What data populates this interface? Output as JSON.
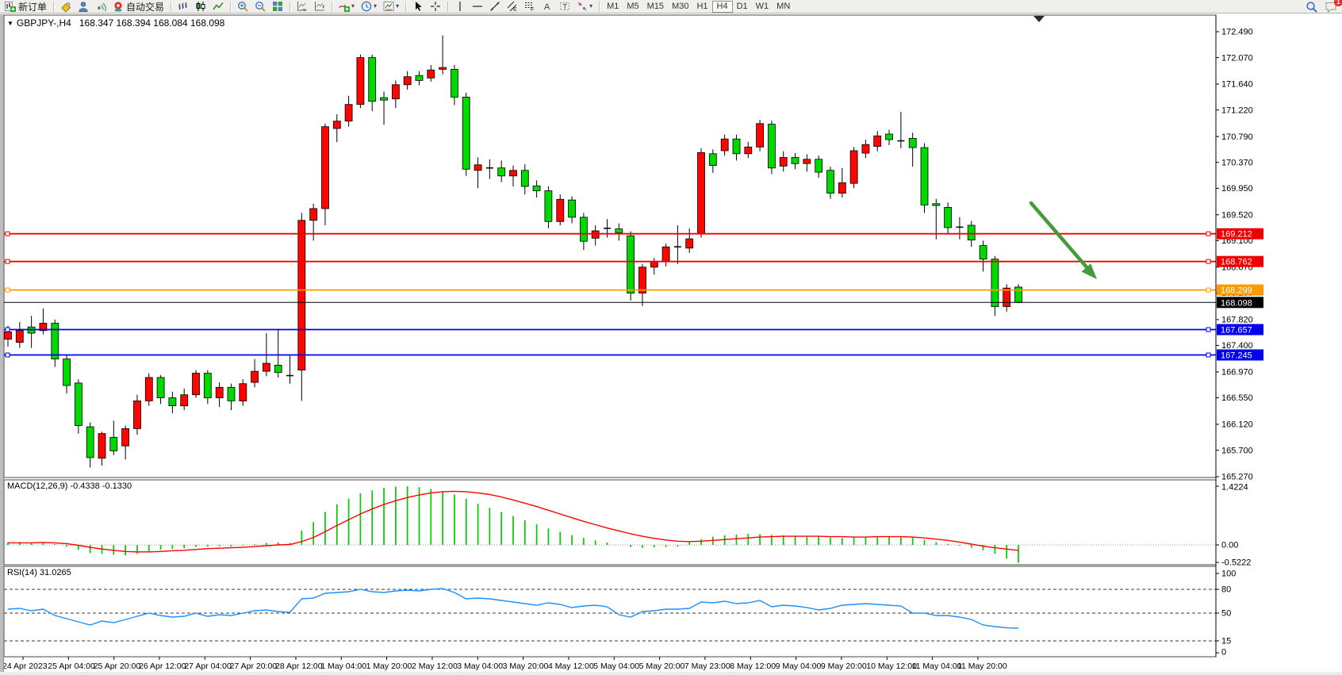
{
  "toolbar": {
    "new_order_label": "新订单",
    "autotrading_label": "自动交易",
    "notification_count": "1",
    "timeframes": [
      "M1",
      "M5",
      "M15",
      "M30",
      "H1",
      "H4",
      "D1",
      "W1",
      "MN"
    ],
    "active_timeframe": "H4",
    "groups": [
      {
        "name": "order",
        "items": [
          {
            "icon": "new-order-icon",
            "name": "new-order-button",
            "label_key": "new_order_label"
          }
        ]
      },
      {
        "name": "quick",
        "items": [
          {
            "icon": "styles-bucket-icon",
            "name": "styles-button"
          },
          {
            "icon": "profile-icon",
            "name": "profile-button"
          },
          {
            "icon": "signals-icon",
            "name": "signals-button"
          },
          {
            "icon": "autotrading-icon",
            "name": "autotrading-button",
            "label_key": "autotrading_label"
          }
        ]
      },
      {
        "name": "chart-type",
        "items": [
          {
            "icon": "bar-chart-icon",
            "name": "bar-chart-button"
          },
          {
            "icon": "candlestick-icon",
            "name": "candlestick-button"
          },
          {
            "icon": "line-chart-icon",
            "name": "line-chart-button"
          }
        ]
      },
      {
        "name": "zoom",
        "items": [
          {
            "icon": "zoom-in-icon",
            "name": "zoom-in-button"
          },
          {
            "icon": "zoom-out-icon",
            "name": "zoom-out-button"
          },
          {
            "icon": "tile-windows-icon",
            "name": "tile-windows-button"
          }
        ]
      },
      {
        "name": "scroll",
        "items": [
          {
            "icon": "auto-scroll-icon",
            "name": "auto-scroll-button"
          },
          {
            "icon": "chart-shift-icon",
            "name": "chart-shift-button"
          }
        ]
      },
      {
        "name": "insert",
        "items": [
          {
            "icon": "indicators-icon",
            "name": "indicators-button",
            "dropdown": true
          },
          {
            "icon": "periods-icon",
            "name": "periods-button",
            "dropdown": true
          },
          {
            "icon": "templates-icon",
            "name": "templates-button",
            "dropdown": true
          }
        ]
      },
      {
        "name": "pointer",
        "items": [
          {
            "icon": "cursor-icon",
            "name": "cursor-button"
          },
          {
            "icon": "crosshair-icon",
            "name": "crosshair-button"
          }
        ]
      },
      {
        "name": "objects",
        "items": [
          {
            "icon": "vertical-line-icon",
            "name": "vertical-line-button"
          },
          {
            "icon": "horizontal-line-icon",
            "name": "horizontal-line-button"
          },
          {
            "icon": "trendline-icon",
            "name": "trendline-button"
          },
          {
            "icon": "equidistant-channel-icon",
            "name": "equidistant-channel-button"
          },
          {
            "icon": "fibonacci-icon",
            "name": "fibonacci-button"
          },
          {
            "icon": "text-icon",
            "name": "text-button"
          },
          {
            "icon": "label-icon",
            "name": "label-button"
          },
          {
            "icon": "arrows-icon",
            "name": "arrows-button",
            "dropdown": true
          }
        ]
      }
    ],
    "right_items": [
      {
        "icon": "search-icon",
        "name": "search-button"
      },
      {
        "icon": "chat-icon",
        "name": "notifications-button",
        "badged": true
      }
    ]
  },
  "chart_header": {
    "collapse_glyph": "▼",
    "symbol_period": "GBPJPY-,H4",
    "ohlc": "168.347 168.394 168.084 168.098"
  },
  "price_axis": {
    "ticks": [
      "172.490",
      "172.070",
      "171.640",
      "171.220",
      "170.790",
      "170.370",
      "169.950",
      "169.520",
      "169.100",
      "168.670",
      "168.250",
      "167.820",
      "167.400",
      "166.970",
      "166.550",
      "166.120",
      "165.700",
      "165.270"
    ]
  },
  "lines": {
    "hlines": [
      {
        "price": 169.212,
        "label": "169.212",
        "color": "#ee0000"
      },
      {
        "price": 168.762,
        "label": "168.762",
        "color": "#ee0000"
      },
      {
        "price": 168.299,
        "label": "168.299",
        "color": "#ff9900"
      },
      {
        "price": 167.657,
        "label": "167.657",
        "color": "#0000ee"
      },
      {
        "price": 167.245,
        "label": "167.245",
        "color": "#0000ee"
      }
    ],
    "bid": {
      "price": 168.098,
      "label": "168.098",
      "color": "#000000"
    }
  },
  "macd_pane": {
    "label": "MACD(12,26,9) -0.4338 -0.1330",
    "ticks": [
      {
        "v": 1.4224,
        "label": "1.4224"
      },
      {
        "v": 0.0,
        "label": "0.00"
      },
      {
        "v": -0.5222,
        "label": "-0.5222"
      }
    ]
  },
  "rsi_pane": {
    "label": "RSI(14) 31.0265",
    "ticks": [
      {
        "v": 100,
        "label": "100"
      },
      {
        "v": 80,
        "label": "80"
      },
      {
        "v": 50,
        "label": "50"
      },
      {
        "v": 15,
        "label": "15"
      },
      {
        "v": 0,
        "label": "0"
      }
    ],
    "levels": [
      80,
      50,
      15
    ]
  },
  "annotation_arrow": {
    "color": "#459A3B"
  },
  "chart_data": {
    "type": "candlestick",
    "symbol": "GBPJPY-",
    "period": "H4",
    "title": "GBPJPY-,H4",
    "bull_color": "#ff0400",
    "bear_color": "#00d900",
    "macd_hist_color": "#00cc00",
    "macd_signal_color": "#ff0000",
    "rsi_color": "#1E90FF",
    "ylim": [
      165.257,
      172.747
    ],
    "x_labels": [
      "24 Apr 2023",
      "25 Apr 04:00",
      "25 Apr 20:00",
      "26 Apr 12:00",
      "27 Apr 04:00",
      "27 Apr 20:00",
      "28 Apr 12:00",
      "1 May 04:00",
      "1 May 20:00",
      "2 May 12:00",
      "3 May 04:00",
      "3 May 20:00",
      "4 May 12:00",
      "5 May 04:00",
      "5 May 20:00",
      "7 May 23:00",
      "8 May 12:00",
      "9 May 04:00",
      "9 May 20:00",
      "10 May 12:00",
      "11 May 04:00",
      "11 May 20:00"
    ],
    "candles": [
      [
        167.5,
        167.72,
        167.38,
        167.62
      ],
      [
        167.45,
        167.78,
        167.36,
        167.64
      ],
      [
        167.7,
        167.88,
        167.36,
        167.6
      ],
      [
        167.64,
        168.0,
        167.58,
        167.76
      ],
      [
        167.76,
        167.82,
        167.05,
        167.18
      ],
      [
        167.18,
        167.25,
        166.62,
        166.75
      ],
      [
        166.79,
        166.85,
        165.97,
        166.1
      ],
      [
        166.08,
        166.15,
        165.42,
        165.58
      ],
      [
        165.57,
        166.0,
        165.45,
        165.97
      ],
      [
        165.91,
        166.18,
        165.62,
        165.69
      ],
      [
        165.77,
        166.1,
        165.55,
        166.05
      ],
      [
        166.05,
        166.6,
        165.95,
        166.5
      ],
      [
        166.5,
        166.95,
        166.42,
        166.88
      ],
      [
        166.88,
        166.92,
        166.45,
        166.55
      ],
      [
        166.55,
        166.65,
        166.3,
        166.42
      ],
      [
        166.42,
        166.7,
        166.35,
        166.6
      ],
      [
        166.6,
        167.0,
        166.55,
        166.95
      ],
      [
        166.95,
        167.0,
        166.45,
        166.55
      ],
      [
        166.55,
        166.8,
        166.4,
        166.72
      ],
      [
        166.72,
        166.78,
        166.35,
        166.5
      ],
      [
        166.5,
        166.85,
        166.42,
        166.78
      ],
      [
        166.8,
        167.18,
        166.72,
        166.98
      ],
      [
        166.98,
        167.6,
        166.9,
        167.11
      ],
      [
        167.08,
        167.67,
        166.88,
        166.96
      ],
      [
        166.93,
        167.25,
        166.78,
        166.91
      ],
      [
        167.0,
        169.55,
        166.5,
        169.43
      ],
      [
        169.43,
        169.7,
        169.1,
        169.62
      ],
      [
        169.62,
        171.0,
        169.35,
        170.95
      ],
      [
        170.92,
        171.15,
        170.7,
        171.04
      ],
      [
        171.04,
        171.45,
        170.95,
        171.31
      ],
      [
        171.31,
        172.12,
        171.25,
        172.07
      ],
      [
        172.07,
        172.12,
        171.2,
        171.36
      ],
      [
        171.42,
        171.52,
        170.98,
        171.38
      ],
      [
        171.4,
        171.7,
        171.25,
        171.63
      ],
      [
        171.63,
        171.85,
        171.55,
        171.76
      ],
      [
        171.78,
        171.85,
        171.62,
        171.7
      ],
      [
        171.74,
        171.95,
        171.68,
        171.87
      ],
      [
        171.88,
        172.43,
        171.8,
        171.91
      ],
      [
        171.88,
        171.95,
        171.3,
        171.43
      ],
      [
        171.43,
        171.5,
        170.15,
        170.26
      ],
      [
        170.24,
        170.45,
        169.95,
        170.33
      ],
      [
        170.3,
        170.42,
        170.1,
        170.28
      ],
      [
        170.28,
        170.4,
        170.05,
        170.15
      ],
      [
        170.15,
        170.32,
        169.98,
        170.24
      ],
      [
        170.24,
        170.34,
        169.85,
        169.98
      ],
      [
        169.99,
        170.08,
        169.8,
        169.91
      ],
      [
        169.91,
        169.98,
        169.3,
        169.41
      ],
      [
        169.41,
        169.85,
        169.35,
        169.77
      ],
      [
        169.76,
        169.82,
        169.38,
        169.48
      ],
      [
        169.48,
        169.55,
        168.95,
        169.09
      ],
      [
        169.14,
        169.35,
        169.02,
        169.26
      ],
      [
        169.29,
        169.45,
        169.15,
        169.3
      ],
      [
        169.29,
        169.38,
        169.1,
        169.23
      ],
      [
        169.18,
        169.25,
        168.13,
        168.25
      ],
      [
        168.25,
        168.72,
        168.04,
        168.67
      ],
      [
        168.67,
        168.82,
        168.55,
        168.76
      ],
      [
        168.76,
        169.05,
        168.68,
        169.0
      ],
      [
        169.0,
        169.35,
        168.72,
        169.0
      ],
      [
        168.98,
        169.3,
        168.9,
        169.13
      ],
      [
        169.21,
        170.6,
        169.15,
        170.53
      ],
      [
        170.51,
        170.58,
        170.2,
        170.32
      ],
      [
        170.56,
        170.82,
        170.48,
        170.75
      ],
      [
        170.75,
        170.82,
        170.4,
        170.51
      ],
      [
        170.51,
        170.7,
        170.44,
        170.62
      ],
      [
        170.62,
        171.06,
        170.55,
        171.0
      ],
      [
        170.99,
        171.05,
        170.18,
        170.28
      ],
      [
        170.31,
        170.55,
        170.22,
        170.45
      ],
      [
        170.45,
        170.52,
        170.26,
        170.35
      ],
      [
        170.35,
        170.5,
        170.22,
        170.42
      ],
      [
        170.42,
        170.48,
        170.12,
        170.21
      ],
      [
        170.24,
        170.3,
        169.78,
        169.87
      ],
      [
        169.87,
        170.28,
        169.8,
        170.04
      ],
      [
        170.03,
        170.62,
        169.95,
        170.56
      ],
      [
        170.52,
        170.74,
        170.44,
        170.66
      ],
      [
        170.63,
        170.88,
        170.55,
        170.8
      ],
      [
        170.83,
        170.9,
        170.65,
        170.74
      ],
      [
        170.72,
        171.19,
        170.6,
        170.72
      ],
      [
        170.76,
        170.85,
        170.3,
        170.61
      ],
      [
        170.61,
        170.68,
        169.55,
        169.68
      ],
      [
        169.7,
        169.78,
        169.12,
        169.67
      ],
      [
        169.64,
        169.72,
        169.2,
        169.31
      ],
      [
        169.32,
        169.48,
        169.12,
        169.32
      ],
      [
        169.35,
        169.42,
        169.0,
        169.11
      ],
      [
        169.02,
        169.1,
        168.6,
        168.8
      ],
      [
        168.8,
        168.85,
        167.88,
        168.03
      ],
      [
        168.03,
        168.39,
        167.95,
        168.33
      ],
      [
        168.347,
        168.394,
        168.084,
        168.098
      ]
    ],
    "macd_hist": [
      0.06,
      0.07,
      0.06,
      0.06,
      0.02,
      -0.04,
      -0.12,
      -0.2,
      -0.22,
      -0.24,
      -0.25,
      -0.22,
      -0.16,
      -0.12,
      -0.1,
      -0.08,
      -0.05,
      -0.04,
      -0.03,
      -0.04,
      -0.02,
      0.02,
      0.05,
      0.06,
      0.05,
      0.35,
      0.55,
      0.8,
      0.98,
      1.12,
      1.25,
      1.32,
      1.38,
      1.41,
      1.42,
      1.4,
      1.36,
      1.3,
      1.22,
      1.12,
      1.0,
      0.9,
      0.8,
      0.7,
      0.6,
      0.5,
      0.4,
      0.32,
      0.24,
      0.17,
      0.11,
      0.06,
      0.0,
      -0.05,
      -0.07,
      -0.06,
      -0.05,
      -0.04,
      0.08,
      0.14,
      0.2,
      0.23,
      0.25,
      0.27,
      0.26,
      0.24,
      0.23,
      0.22,
      0.21,
      0.2,
      0.18,
      0.17,
      0.19,
      0.2,
      0.21,
      0.21,
      0.2,
      0.18,
      0.12,
      0.07,
      0.02,
      -0.02,
      -0.07,
      -0.13,
      -0.22,
      -0.33,
      -0.4338
    ],
    "macd_signal": [
      0.05,
      0.05,
      0.05,
      0.06,
      0.05,
      0.03,
      -0.01,
      -0.06,
      -0.1,
      -0.13,
      -0.16,
      -0.17,
      -0.17,
      -0.16,
      -0.14,
      -0.13,
      -0.11,
      -0.09,
      -0.08,
      -0.07,
      -0.06,
      -0.04,
      -0.02,
      0.0,
      0.01,
      0.08,
      0.18,
      0.32,
      0.47,
      0.61,
      0.75,
      0.87,
      0.98,
      1.07,
      1.15,
      1.21,
      1.26,
      1.29,
      1.3,
      1.29,
      1.26,
      1.22,
      1.16,
      1.09,
      1.01,
      0.93,
      0.84,
      0.75,
      0.66,
      0.57,
      0.49,
      0.41,
      0.34,
      0.27,
      0.21,
      0.16,
      0.12,
      0.09,
      0.08,
      0.09,
      0.11,
      0.13,
      0.15,
      0.17,
      0.19,
      0.2,
      0.21,
      0.21,
      0.21,
      0.21,
      0.2,
      0.2,
      0.19,
      0.19,
      0.2,
      0.2,
      0.2,
      0.19,
      0.17,
      0.14,
      0.11,
      0.07,
      0.02,
      -0.03,
      -0.07,
      -0.1,
      -0.133
    ],
    "rsi": [
      55,
      56,
      53,
      55,
      47,
      43,
      39,
      35,
      40,
      38,
      42,
      46,
      50,
      47,
      45,
      46,
      50,
      46,
      48,
      47,
      50,
      53,
      54,
      52,
      51,
      68,
      69,
      75,
      76,
      77,
      80,
      77,
      76,
      78,
      79,
      78,
      80,
      81,
      76,
      68,
      69,
      68,
      66,
      64,
      62,
      60,
      63,
      61,
      57,
      59,
      60,
      58,
      48,
      45,
      52,
      53,
      55,
      55,
      56,
      64,
      63,
      65,
      62,
      63,
      66,
      58,
      60,
      59,
      57,
      54,
      56,
      60,
      61,
      62,
      61,
      60,
      59,
      50,
      50,
      47,
      47,
      45,
      42,
      35,
      33,
      31.5,
      31.0
    ]
  }
}
